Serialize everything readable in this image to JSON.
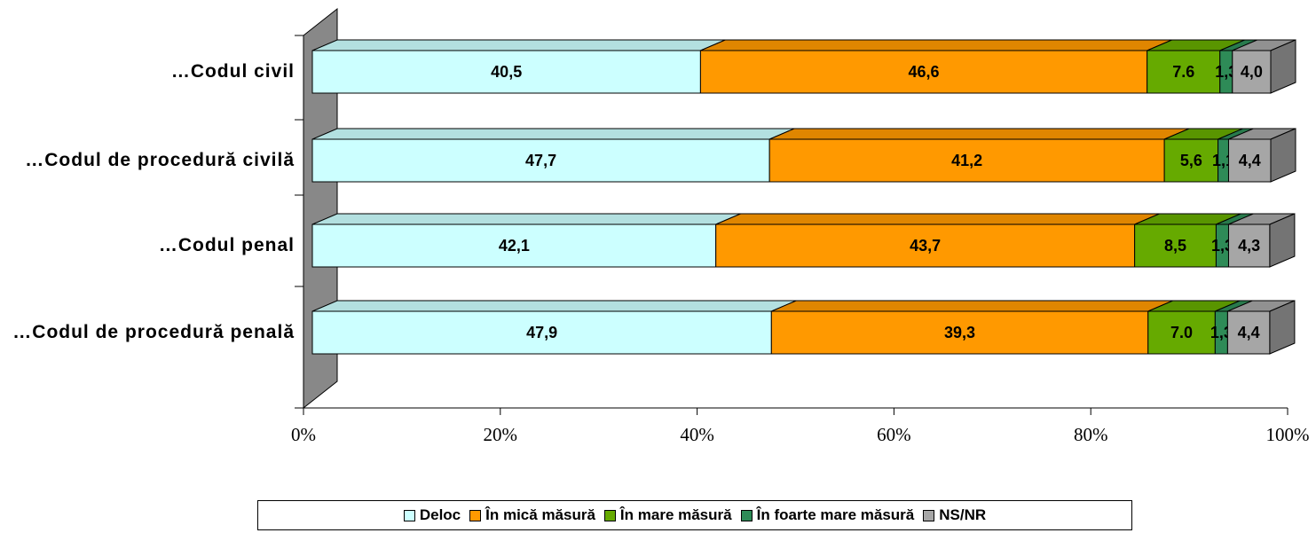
{
  "chart_data": {
    "type": "stacked-bar-3d",
    "categories": [
      "…Codul civil",
      "…Codul de procedură civilă",
      "…Codul penal",
      "…Codul de procedură penală"
    ],
    "series": [
      {
        "name": "Deloc",
        "color": "#ccffff",
        "values": [
          40.5,
          47.7,
          42.1,
          47.9
        ],
        "value_labels": [
          "40,5",
          "47,7",
          "42,1",
          "47,9"
        ]
      },
      {
        "name": "În mică măsură",
        "color": "#ff9900",
        "values": [
          46.6,
          41.2,
          43.7,
          39.3
        ],
        "value_labels": [
          "46,6",
          "41,2",
          "43,7",
          "39,3"
        ]
      },
      {
        "name": "În mare măsură",
        "color": "#66aa00",
        "values": [
          7.6,
          5.6,
          8.5,
          7.0
        ],
        "value_labels": [
          "7.6",
          "5,6",
          "8,5",
          "7.0"
        ]
      },
      {
        "name": "În foarte mare măsură",
        "color": "#2e8b57",
        "values": [
          1.3,
          1.1,
          1.3,
          1.3
        ],
        "value_labels": [
          "1,3",
          "1,1",
          "1,3",
          "1,3"
        ]
      },
      {
        "name": "NS/NR",
        "color": "#a6a6a6",
        "values": [
          4.0,
          4.4,
          4.3,
          4.4
        ],
        "value_labels": [
          "4,0",
          "4,4",
          "4,3",
          "4,4"
        ]
      }
    ],
    "xlim": [
      0,
      100
    ],
    "xticks": [
      {
        "value": 0,
        "label": "0%"
      },
      {
        "value": 20,
        "label": "20%"
      },
      {
        "value": 40,
        "label": "40%"
      },
      {
        "value": 60,
        "label": "60%"
      },
      {
        "value": 80,
        "label": "80%"
      },
      {
        "value": 100,
        "label": "100%"
      }
    ],
    "legend": "bottom"
  }
}
